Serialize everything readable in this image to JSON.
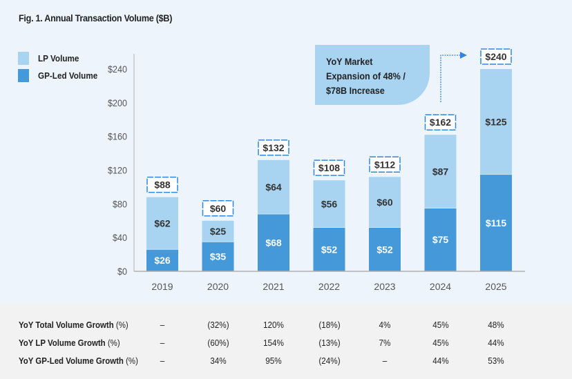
{
  "title": "Fig. 1. Annual Transaction Volume ($B)",
  "legend": [
    {
      "label": "LP Volume",
      "color": "#a8d4f2"
    },
    {
      "label": "GP-Led Volume",
      "color": "#4599d9"
    }
  ],
  "callout": {
    "lines": [
      "YoY Market",
      "Expansion of 48% /",
      "$78B Increase"
    ],
    "color": "#a8d4f2"
  },
  "chart_data": {
    "type": "bar",
    "stacked": true,
    "title": "Fig. 1. Annual Transaction Volume ($B)",
    "xlabel": "",
    "ylabel": "",
    "categories": [
      "2019",
      "2020",
      "2021",
      "2022",
      "2023",
      "2024",
      "2025"
    ],
    "series": [
      {
        "name": "GP-Led Volume",
        "color": "#4599d9",
        "values": [
          26,
          35,
          68,
          52,
          52,
          75,
          115
        ],
        "labels": [
          "$26",
          "$35",
          "$68",
          "$52",
          "$52",
          "$75",
          "$115"
        ]
      },
      {
        "name": "LP Volume",
        "color": "#a8d4f2",
        "values": [
          62,
          25,
          64,
          56,
          60,
          87,
          125
        ],
        "labels": [
          "$62",
          "$25",
          "$64",
          "$56",
          "$60",
          "$87",
          "$125"
        ]
      }
    ],
    "totals": [
      88,
      60,
      132,
      108,
      112,
      162,
      240
    ],
    "total_labels": [
      "$88",
      "$60",
      "$132",
      "$108",
      "$112",
      "$162",
      "$240"
    ],
    "yticks": [
      0,
      40,
      80,
      120,
      160,
      200,
      240
    ],
    "ytick_labels": [
      "$0",
      "$40",
      "$80",
      "$120",
      "$160",
      "$200",
      "$240"
    ],
    "ylim": [
      0,
      240
    ],
    "grid": false,
    "legend_position": "top-left",
    "annotation": "YoY Market Expansion of 48% / $78B Increase"
  },
  "table": {
    "rows": [
      {
        "label": "YoY Total Volume Growth",
        "unit": "(%)",
        "values": [
          "–",
          "(32%)",
          "120%",
          "(18%)",
          "4%",
          "45%",
          "48%"
        ]
      },
      {
        "label": "YoY LP Volume Growth",
        "unit": "(%)",
        "values": [
          "–",
          "(60%)",
          "154%",
          "(13%)",
          "7%",
          "45%",
          "44%"
        ]
      },
      {
        "label": "YoY GP-Led Volume Growth",
        "unit": "(%)",
        "values": [
          "–",
          "34%",
          "95%",
          "(24%)",
          "–",
          "44%",
          "53%"
        ]
      }
    ]
  }
}
